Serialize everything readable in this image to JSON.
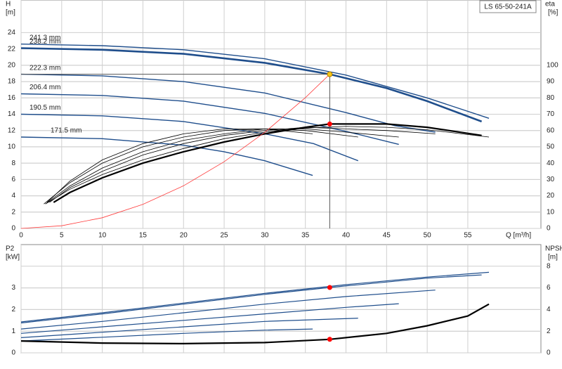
{
  "chart_data": [
    {
      "type": "line",
      "title": "LS 65-50-241A",
      "y_label": "H",
      "y_unit": "[m]",
      "y2_label": "eta",
      "y2_unit": "[%]",
      "x_label": "Q [m³/h]",
      "xlim": [
        0,
        64
      ],
      "xticks": [
        0,
        5,
        10,
        15,
        20,
        25,
        30,
        35,
        40,
        45,
        50,
        55
      ],
      "ylim": [
        0,
        28
      ],
      "yticks": [
        0,
        2,
        4,
        6,
        8,
        10,
        12,
        14,
        16,
        18,
        20,
        22,
        24
      ],
      "y2lim": [
        0,
        140
      ],
      "y2ticks": [
        0,
        10,
        20,
        30,
        40,
        50,
        60,
        70,
        80,
        90,
        100
      ],
      "grid": true,
      "series": [
        {
          "name": "241.3 mm",
          "color": "#1f4e8c",
          "width": 1.4,
          "x": [
            0,
            10,
            20,
            30,
            40,
            50,
            57.6
          ],
          "values": [
            22.6,
            22.4,
            21.9,
            20.8,
            18.8,
            16.0,
            13.5
          ]
        },
        {
          "name": "238.2 mm",
          "color": "#1f4e8c",
          "width": 2.6,
          "x": [
            0,
            10,
            20,
            30,
            38,
            45,
            50,
            56.7
          ],
          "values": [
            22.1,
            21.9,
            21.4,
            20.3,
            18.9,
            17.2,
            15.6,
            13.1
          ]
        },
        {
          "name": "222.3 mm",
          "color": "#1f4e8c",
          "width": 1.4,
          "x": [
            0,
            10,
            20,
            30,
            40,
            46,
            51
          ],
          "values": [
            18.9,
            18.7,
            18.0,
            16.6,
            14.2,
            12.6,
            11.8
          ]
        },
        {
          "name": "206.4 mm",
          "color": "#1f4e8c",
          "width": 1.4,
          "x": [
            0,
            10,
            20,
            30,
            40,
            46.5
          ],
          "values": [
            16.5,
            16.3,
            15.6,
            14.1,
            11.9,
            10.3
          ]
        },
        {
          "name": "190.5 mm",
          "color": "#1f4e8c",
          "width": 1.4,
          "x": [
            0,
            10,
            20,
            30,
            36,
            41.5
          ],
          "values": [
            14.0,
            13.8,
            13.1,
            11.6,
            10.4,
            8.3
          ]
        },
        {
          "name": "171.5 mm",
          "color": "#1f4e8c",
          "width": 1.4,
          "x": [
            0,
            10,
            20,
            25,
            30,
            35.9
          ],
          "values": [
            11.2,
            11.0,
            10.2,
            9.4,
            8.3,
            6.5
          ]
        },
        {
          "color": "#000000",
          "width": 0.8,
          "axis": "y2",
          "x": [
            3,
            6,
            10,
            15,
            20,
            25,
            30,
            35,
            40,
            45,
            50,
            57.6
          ],
          "values": [
            15,
            24,
            33,
            42,
            49,
            55,
            59,
            61.5,
            62.5,
            62,
            60.5,
            56
          ]
        },
        {
          "color": "#000000",
          "width": 2.2,
          "axis": "y2",
          "x": [
            4,
            6,
            10,
            15,
            20,
            25,
            30,
            35,
            38,
            45,
            50,
            56.7
          ],
          "values": [
            16,
            22,
            31,
            40,
            47,
            53,
            58,
            62,
            64,
            64,
            62,
            57
          ]
        },
        {
          "color": "#000000",
          "width": 0.8,
          "axis": "y2",
          "x": [
            3.5,
            6,
            10,
            15,
            20,
            25,
            30,
            35,
            40,
            45,
            51
          ],
          "values": [
            16,
            25,
            35,
            45,
            52,
            57,
            60,
            62,
            61,
            60,
            58
          ]
        },
        {
          "color": "#000000",
          "width": 0.8,
          "axis": "y2",
          "x": [
            3,
            6,
            10,
            15,
            20,
            25,
            30,
            35,
            40,
            46.5
          ],
          "values": [
            15,
            26,
            37,
            47,
            54,
            58,
            61,
            61,
            59,
            56
          ]
        },
        {
          "color": "#000000",
          "width": 0.8,
          "axis": "y2",
          "x": [
            2.8,
            6,
            10,
            15,
            20,
            25,
            30,
            35,
            41.5
          ],
          "values": [
            15,
            28,
            40,
            50,
            56,
            60,
            61,
            60,
            56
          ]
        },
        {
          "color": "#000000",
          "width": 0.8,
          "axis": "y2",
          "x": [
            3.2,
            6,
            10,
            15,
            20,
            25,
            30,
            35.9
          ],
          "values": [
            16,
            29,
            42,
            52,
            58,
            61,
            61,
            58
          ]
        },
        {
          "color": "#ff3b3b",
          "width": 0.8,
          "x": [
            0,
            5,
            10,
            15,
            20,
            25,
            30,
            35,
            38
          ],
          "values": [
            0,
            0.33,
            1.31,
            2.95,
            5.23,
            8.18,
            11.78,
            16.03,
            18.9
          ]
        },
        {
          "color": "#f5c518",
          "marker": "guide",
          "x": [
            38
          ],
          "values": [
            18.9
          ]
        },
        {
          "color": "#ff0000",
          "marker": "dot",
          "axis": "y2",
          "x": [
            38
          ],
          "values": [
            64
          ]
        }
      ]
    },
    {
      "type": "line",
      "y_label": "P2",
      "y_unit": "[kW]",
      "y2_label": "NPSH",
      "y2_unit": "[m]",
      "xlim": [
        0,
        64
      ],
      "xticks": [
        0,
        5,
        10,
        15,
        20,
        25,
        30,
        35,
        40,
        45,
        50,
        55
      ],
      "ylim": [
        0,
        5
      ],
      "yticks": [
        0,
        1,
        2,
        3
      ],
      "y2lim": [
        0,
        10
      ],
      "y2ticks": [
        0,
        2,
        4,
        6,
        8
      ],
      "grid": true,
      "series": [
        {
          "color": "#1f4e8c",
          "width": 1.2,
          "x": [
            0,
            10,
            20,
            30,
            40,
            50,
            57.6
          ],
          "values": [
            1.43,
            1.85,
            2.3,
            2.75,
            3.15,
            3.5,
            3.72
          ]
        },
        {
          "color": "#1f4e8c",
          "width": 1.2,
          "x": [
            0,
            10,
            20,
            30,
            38,
            50,
            56.7
          ],
          "values": [
            1.38,
            1.8,
            2.25,
            2.7,
            3.02,
            3.45,
            3.6
          ]
        },
        {
          "color": "#1f4e8c",
          "width": 1.2,
          "x": [
            0,
            10,
            20,
            30,
            40,
            51
          ],
          "values": [
            1.1,
            1.45,
            1.85,
            2.25,
            2.6,
            2.9
          ]
        },
        {
          "color": "#1f4e8c",
          "width": 1.2,
          "x": [
            0,
            10,
            20,
            30,
            40,
            46.5
          ],
          "values": [
            0.9,
            1.2,
            1.5,
            1.8,
            2.1,
            2.27
          ]
        },
        {
          "color": "#1f4e8c",
          "width": 1.2,
          "x": [
            0,
            10,
            20,
            30,
            41.5
          ],
          "values": [
            0.7,
            0.95,
            1.2,
            1.45,
            1.6
          ]
        },
        {
          "color": "#1f4e8c",
          "width": 1.2,
          "x": [
            0,
            10,
            20,
            30,
            35.9
          ],
          "values": [
            0.55,
            0.72,
            0.9,
            1.05,
            1.1
          ]
        },
        {
          "color": "#000000",
          "width": 2.2,
          "axis": "y2",
          "x": [
            0,
            10,
            20,
            30,
            38,
            45,
            50,
            55,
            57.6
          ],
          "values": [
            1.1,
            0.9,
            0.85,
            0.95,
            1.25,
            1.8,
            2.5,
            3.4,
            4.5
          ]
        },
        {
          "color": "#ff0000",
          "marker": "dot",
          "x": [
            38
          ],
          "values": [
            3.02
          ]
        },
        {
          "color": "#ff0000",
          "marker": "dot",
          "axis": "y2",
          "x": [
            38
          ],
          "values": [
            1.25
          ]
        }
      ]
    }
  ]
}
